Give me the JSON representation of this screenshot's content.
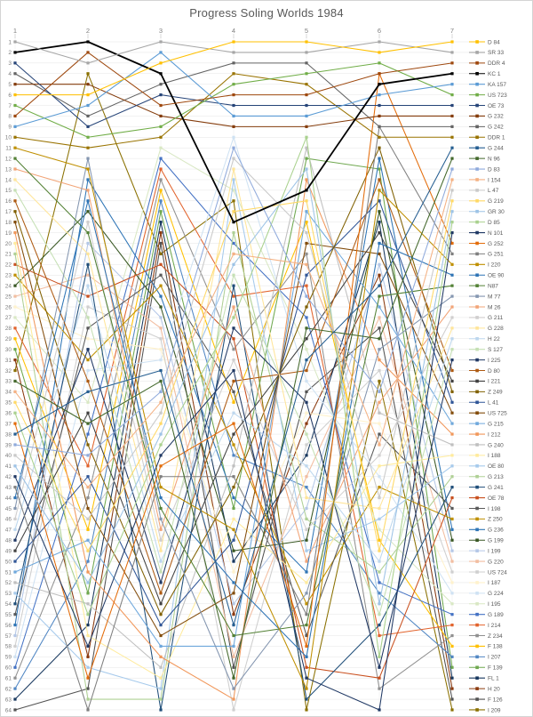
{
  "title": "Progress Soling Worlds 1984",
  "chart_data": {
    "type": "line",
    "variant": "bump-chart",
    "title": "Progress Soling Worlds 1984",
    "columns": [
      1,
      2,
      3,
      4,
      5,
      6,
      7
    ],
    "rank_axis": {
      "min": 1,
      "max": 64,
      "direction": "top-is-best"
    },
    "grid": true,
    "legend_position": "right",
    "series": [
      {
        "name": "D 84",
        "color": "#FFC000",
        "ranks": [
          6,
          6,
          3,
          1,
          1,
          2,
          1
        ]
      },
      {
        "name": "SR 33",
        "color": "#A6A6A6",
        "ranks": [
          1,
          3,
          1,
          2,
          2,
          1,
          2
        ]
      },
      {
        "name": "DDR 4",
        "color": "#9E480E",
        "ranks": [
          8,
          2,
          7,
          6,
          6,
          4,
          3
        ]
      },
      {
        "name": "KC 1",
        "color": "#000000",
        "ranks": [
          2,
          1,
          4,
          18,
          15,
          5,
          4
        ]
      },
      {
        "name": "KA 157",
        "color": "#5B9BD5",
        "ranks": [
          9,
          7,
          2,
          8,
          8,
          6,
          5
        ]
      },
      {
        "name": "US 723",
        "color": "#70AD47",
        "ranks": [
          7,
          10,
          9,
          5,
          4,
          3,
          6
        ]
      },
      {
        "name": "OE 73",
        "color": "#264478",
        "ranks": [
          3,
          9,
          6,
          7,
          7,
          7,
          7
        ]
      },
      {
        "name": "G 232",
        "color": "#843C0C",
        "ranks": [
          5,
          5,
          8,
          9,
          9,
          8,
          8
        ]
      },
      {
        "name": "G 242",
        "color": "#636363",
        "ranks": [
          4,
          8,
          5,
          3,
          3,
          9,
          9
        ]
      },
      {
        "name": "DDR 1",
        "color": "#997300",
        "ranks": [
          10,
          11,
          10,
          4,
          5,
          10,
          10
        ]
      },
      {
        "name": "G 244",
        "color": "#255E91",
        "ranks": [
          38,
          34,
          32,
          56,
          31,
          24,
          11
        ]
      },
      {
        "name": "N 96",
        "color": "#43682B",
        "ranks": [
          33,
          37,
          33,
          61,
          28,
          29,
          12
        ]
      },
      {
        "name": "D 83",
        "color": "#8FAADC",
        "ranks": [
          39,
          40,
          34,
          11,
          25,
          34,
          13
        ]
      },
      {
        "name": "I 154",
        "color": "#F4B183",
        "ranks": [
          34,
          43,
          35,
          21,
          22,
          39,
          14
        ]
      },
      {
        "name": "L 47",
        "color": "#C9C9C9",
        "ranks": [
          40,
          46,
          36,
          12,
          19,
          44,
          15
        ]
      },
      {
        "name": "G 219",
        "color": "#FFD966",
        "ranks": [
          35,
          49,
          37,
          17,
          16,
          49,
          16
        ]
      },
      {
        "name": "GR 30",
        "color": "#9DC3E6",
        "ranks": [
          41,
          52,
          38,
          22,
          13,
          54,
          17
        ]
      },
      {
        "name": "D 85",
        "color": "#A9D18E",
        "ranks": [
          36,
          55,
          39,
          27,
          10,
          59,
          18
        ]
      },
      {
        "name": "N 101",
        "color": "#1F3864",
        "ranks": [
          42,
          58,
          40,
          32,
          61,
          64,
          19
        ]
      },
      {
        "name": "G 252",
        "color": "#E36C0A",
        "ranks": [
          37,
          61,
          41,
          37,
          58,
          4,
          20
        ]
      },
      {
        "name": "G 251",
        "color": "#7F7F7F",
        "ranks": [
          43,
          64,
          42,
          42,
          55,
          9,
          21
        ]
      },
      {
        "name": "I 220",
        "color": "#BF8F00",
        "ranks": [
          11,
          13,
          43,
          47,
          62,
          15,
          22
        ]
      },
      {
        "name": "OE 90",
        "color": "#2E74B5",
        "ranks": [
          44,
          16,
          44,
          52,
          59,
          20,
          23
        ]
      },
      {
        "name": "N87",
        "color": "#538135",
        "ranks": [
          12,
          19,
          45,
          57,
          56,
          25,
          24
        ]
      },
      {
        "name": "M 77",
        "color": "#8496B0",
        "ranks": [
          45,
          12,
          46,
          62,
          53,
          30,
          25
        ]
      },
      {
        "name": "M 26",
        "color": "#F2A477",
        "ranks": [
          13,
          15,
          47,
          26,
          50,
          35,
          26
        ]
      },
      {
        "name": "G 211",
        "color": "#D0CECE",
        "ranks": [
          46,
          18,
          48,
          31,
          47,
          40,
          27
        ]
      },
      {
        "name": "G 228",
        "color": "#FFE599",
        "ranks": [
          14,
          21,
          49,
          13,
          44,
          45,
          28
        ]
      },
      {
        "name": "H 22",
        "color": "#BDD7EE",
        "ranks": [
          47,
          24,
          50,
          36,
          41,
          50,
          29
        ]
      },
      {
        "name": "S 127",
        "color": "#C5E0B4",
        "ranks": [
          15,
          27,
          51,
          23,
          38,
          55,
          30
        ]
      },
      {
        "name": "I 225",
        "color": "#203864",
        "ranks": [
          48,
          30,
          52,
          28,
          35,
          60,
          31
        ]
      },
      {
        "name": "D 80",
        "color": "#AD5A12",
        "ranks": [
          16,
          33,
          53,
          33,
          32,
          14,
          32
        ]
      },
      {
        "name": "I 221",
        "color": "#404040",
        "ranks": [
          49,
          36,
          54,
          38,
          29,
          19,
          33
        ]
      },
      {
        "name": "Z 249",
        "color": "#806000",
        "ranks": [
          17,
          39,
          55,
          43,
          26,
          11,
          34
        ]
      },
      {
        "name": "L 41",
        "color": "#2F5597",
        "ranks": [
          50,
          42,
          56,
          48,
          23,
          16,
          35
        ]
      },
      {
        "name": "US 725",
        "color": "#834C0B",
        "ranks": [
          18,
          45,
          57,
          53,
          20,
          21,
          36
        ]
      },
      {
        "name": "G 215",
        "color": "#6FA8DC",
        "ranks": [
          51,
          48,
          58,
          58,
          17,
          26,
          37
        ]
      },
      {
        "name": "I 212",
        "color": "#F1975A",
        "ranks": [
          19,
          51,
          59,
          63,
          14,
          31,
          38
        ]
      },
      {
        "name": "G 240",
        "color": "#BFBFBF",
        "ranks": [
          52,
          54,
          60,
          41,
          11,
          36,
          39
        ]
      },
      {
        "name": "I 188",
        "color": "#FFEB9C",
        "ranks": [
          20,
          57,
          61,
          46,
          52,
          41,
          40
        ]
      },
      {
        "name": "OE 80",
        "color": "#A6CAEC",
        "ranks": [
          53,
          60,
          62,
          14,
          49,
          46,
          41
        ]
      },
      {
        "name": "G 213",
        "color": "#AFD095",
        "ranks": [
          21,
          63,
          63,
          19,
          46,
          51,
          42
        ]
      },
      {
        "name": "G 241",
        "color": "#1F4E79",
        "ranks": [
          54,
          22,
          64,
          24,
          63,
          56,
          43
        ]
      },
      {
        "name": "OE 78",
        "color": "#C9501F",
        "ranks": [
          22,
          25,
          22,
          29,
          60,
          61,
          44
        ]
      },
      {
        "name": "I 198",
        "color": "#595959",
        "ranks": [
          55,
          28,
          23,
          34,
          57,
          38,
          45
        ]
      },
      {
        "name": "Z 250",
        "color": "#BF9000",
        "ranks": [
          23,
          31,
          24,
          39,
          54,
          43,
          46
        ]
      },
      {
        "name": "G 236",
        "color": "#2E75B6",
        "ranks": [
          56,
          14,
          25,
          44,
          51,
          12,
          47
        ]
      },
      {
        "name": "G 199",
        "color": "#385723",
        "ranks": [
          24,
          17,
          26,
          49,
          48,
          17,
          48
        ]
      },
      {
        "name": "I 199",
        "color": "#B4C7E7",
        "ranks": [
          57,
          20,
          27,
          54,
          45,
          22,
          49
        ]
      },
      {
        "name": "G 220",
        "color": "#F2BDA0",
        "ranks": [
          25,
          23,
          28,
          59,
          42,
          27,
          50
        ]
      },
      {
        "name": "US 724",
        "color": "#CFCFCF",
        "ranks": [
          58,
          26,
          29,
          64,
          39,
          32,
          51
        ]
      },
      {
        "name": "I 187",
        "color": "#FFF2CC",
        "ranks": [
          26,
          29,
          30,
          51,
          36,
          37,
          52
        ]
      },
      {
        "name": "G 224",
        "color": "#CFE2F3",
        "ranks": [
          59,
          32,
          31,
          10,
          33,
          42,
          53
        ]
      },
      {
        "name": "I 195",
        "color": "#D9E8C4",
        "ranks": [
          27,
          35,
          11,
          15,
          30,
          47,
          54
        ]
      },
      {
        "name": "G 189",
        "color": "#4472C4",
        "ranks": [
          60,
          38,
          12,
          20,
          27,
          52,
          55
        ]
      },
      {
        "name": "I 214",
        "color": "#E2632C",
        "ranks": [
          28,
          41,
          13,
          25,
          24,
          57,
          56
        ]
      },
      {
        "name": "Z 234",
        "color": "#909090",
        "ranks": [
          61,
          44,
          14,
          30,
          21,
          62,
          57
        ]
      },
      {
        "name": "F 138",
        "color": "#FFC000",
        "ranks": [
          29,
          47,
          15,
          35,
          18,
          48,
          58
        ]
      },
      {
        "name": "I 207",
        "color": "#5086C3",
        "ranks": [
          62,
          50,
          16,
          40,
          43,
          53,
          59
        ]
      },
      {
        "name": "F 139",
        "color": "#6FA84F",
        "ranks": [
          30,
          53,
          17,
          45,
          12,
          13,
          60
        ]
      },
      {
        "name": "FL 1",
        "color": "#17375E",
        "ranks": [
          63,
          56,
          18,
          50,
          40,
          18,
          61
        ]
      },
      {
        "name": "H 20",
        "color": "#8B3A0F",
        "ranks": [
          31,
          59,
          19,
          55,
          37,
          23,
          62
        ]
      },
      {
        "name": "F 126",
        "color": "#525252",
        "ranks": [
          64,
          62,
          20,
          60,
          34,
          28,
          63
        ]
      },
      {
        "name": "I 209",
        "color": "#8A7000",
        "ranks": [
          32,
          4,
          21,
          16,
          64,
          33,
          64
        ]
      }
    ]
  }
}
